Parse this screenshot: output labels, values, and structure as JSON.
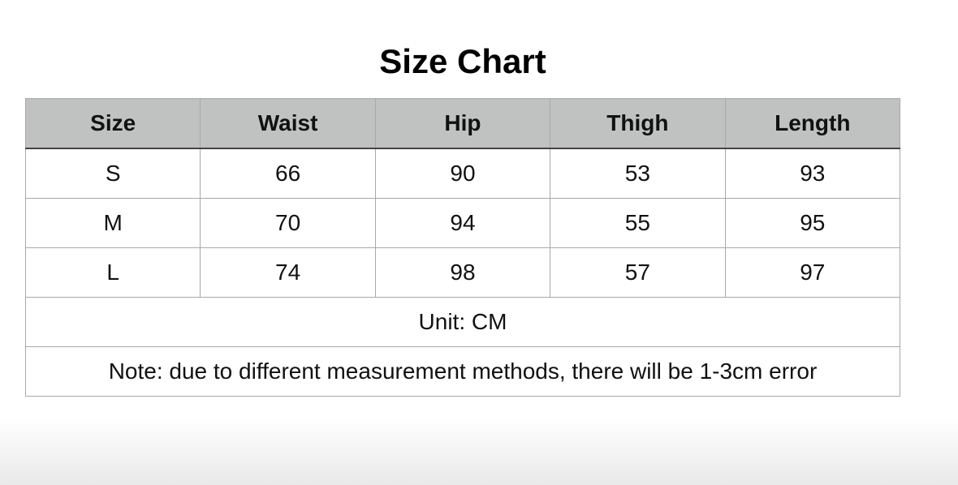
{
  "title": "Size Chart",
  "columns": [
    "Size",
    "Waist",
    "Hip",
    "Thigh",
    "Length"
  ],
  "rows": [
    [
      "S",
      "66",
      "90",
      "53",
      "93"
    ],
    [
      "M",
      "70",
      "94",
      "55",
      "95"
    ],
    [
      "L",
      "74",
      "98",
      "57",
      "97"
    ]
  ],
  "unit": "Unit: CM",
  "note": "Note: due to different measurement methods, there will be 1-3cm error",
  "colors": {
    "header_bg": "#c0c2c1"
  }
}
